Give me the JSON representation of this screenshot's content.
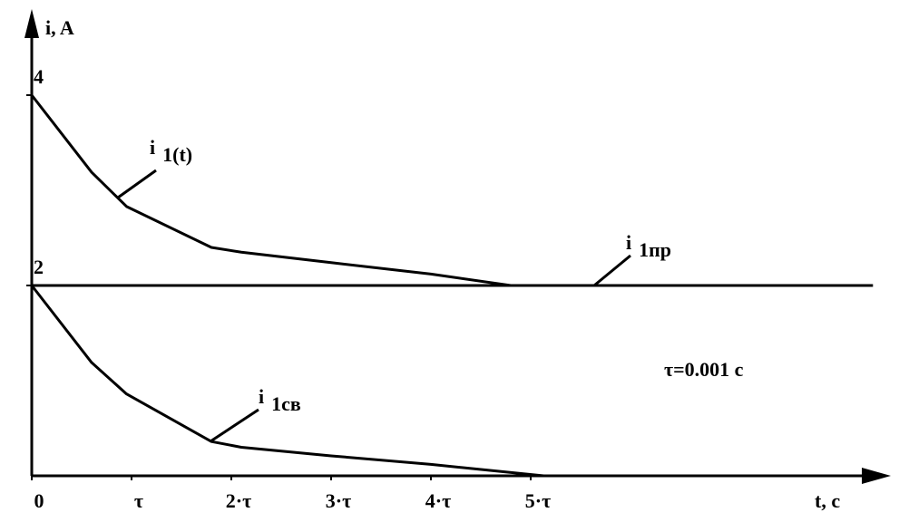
{
  "chart_data": {
    "type": "line",
    "y_label": "i, A",
    "x_label": "t, c",
    "annotation": "τ=0.001 c",
    "xlim": [
      0,
      8.55
    ],
    "ylim": [
      0,
      4.86
    ],
    "xticks": [
      {
        "value": 0,
        "label": "0"
      },
      {
        "value": 1,
        "label": "τ"
      },
      {
        "value": 2,
        "label": "2·τ"
      },
      {
        "value": 3,
        "label": "3·τ"
      },
      {
        "value": 4,
        "label": "4·τ"
      },
      {
        "value": 5,
        "label": "5·τ"
      }
    ],
    "yticks": [
      2,
      4
    ],
    "series": [
      {
        "label": {
          "main": "i",
          "sub": "1(t)"
        },
        "color": "#000000",
        "x": [
          0,
          0.6,
          0.95,
          1.8,
          2.1,
          3,
          4,
          4.8
        ],
        "values": [
          4,
          3.19,
          2.83,
          2.4,
          2.35,
          2.24,
          2.12,
          2.0
        ]
      },
      {
        "label": {
          "main": "i",
          "sub": "1пр"
        },
        "color": "#000000",
        "x": [
          0,
          8.43
        ],
        "values": [
          2,
          2
        ]
      },
      {
        "label": {
          "main": "i",
          "sub": "1св"
        },
        "color": "#000000",
        "x": [
          0,
          0.6,
          0.95,
          1.8,
          2.1,
          3,
          4,
          5.13
        ],
        "values": [
          2,
          1.19,
          0.86,
          0.36,
          0.3,
          0.21,
          0.12,
          0
        ]
      }
    ]
  }
}
